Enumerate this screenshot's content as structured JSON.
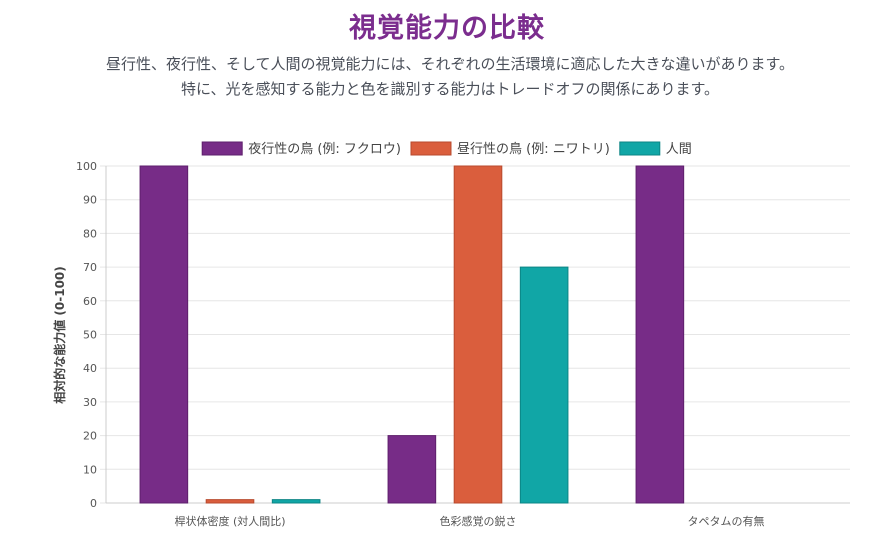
{
  "header": {
    "title": "視覚能力の比較",
    "subtitle": "昼行性、夜行性、そして人間の視覚能力には、それぞれの生活環境に適応した大きな違いがあります。特に、光を感知する能力と色を識別する能力はトレードオフの関係にあります。"
  },
  "colors": {
    "title": "#7B2D8E",
    "grid": "#e6e6e6",
    "axis": "#cccccc"
  },
  "chart_data": {
    "type": "bar",
    "categories": [
      "桿状体密度 (対人間比)",
      "色彩感覚の鋭さ",
      "タペタムの有無"
    ],
    "series": [
      {
        "name": "夜行性の鳥 (例: フクロウ)",
        "values": [
          100,
          20,
          100
        ],
        "color": "#772C87",
        "border": "#5E1F6C"
      },
      {
        "name": "昼行性の鳥 (例: ニワトリ)",
        "values": [
          1,
          100,
          0
        ],
        "color": "#DA5E3D",
        "border": "#B84A2E"
      },
      {
        "name": "人間",
        "values": [
          1,
          70,
          0
        ],
        "color": "#11A6A6",
        "border": "#0C8585"
      }
    ],
    "ylabel": "相対的な能力値 (0-100)",
    "ylim": [
      0,
      100
    ],
    "yticks": [
      0,
      10,
      20,
      30,
      40,
      50,
      60,
      70,
      80,
      90,
      100
    ],
    "grid": true,
    "legend": "top"
  }
}
